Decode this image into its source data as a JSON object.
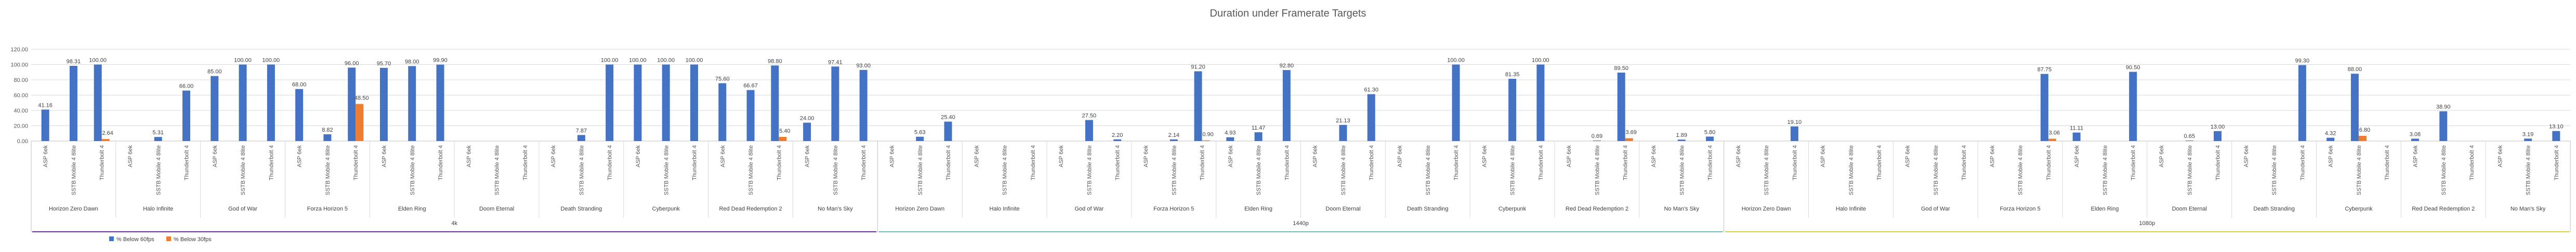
{
  "chart_data": {
    "type": "bar",
    "title": "Duration under Framerate Targets",
    "ylim": [
      0,
      120
    ],
    "yticks": [
      "0.00",
      "20.00",
      "40.00",
      "60.00",
      "80.00",
      "100.00",
      "120.00"
    ],
    "grid": true,
    "legend_position": "bottom-left",
    "series": [
      {
        "name": "% Below 60fps",
        "color": "#4472C4"
      },
      {
        "name": "% Below 30fps",
        "color": "#ED7D31"
      }
    ],
    "devices": [
      "ASP 6ek",
      "SSTB Mobile 4 8lite",
      "Thunderbolt 4"
    ],
    "games": [
      "Horizon Zero Dawn",
      "Halo Infinite",
      "God of War",
      "Forza Horizon 5",
      "Elden Ring",
      "Doom Eternal",
      "Death Stranding",
      "Cyberpunk",
      "Red Dead Redemption 2",
      "No Man's Sky"
    ],
    "resolutions": [
      {
        "label": "4k",
        "line_color": "#7030A0",
        "values": [
          [
            [
              41.16,
              null
            ],
            [
              98.31,
              null
            ],
            [
              100.0,
              2.64
            ]
          ],
          [
            [
              null,
              null
            ],
            [
              5.31,
              null
            ],
            [
              66.0,
              null
            ]
          ],
          [
            [
              85.0,
              null
            ],
            [
              100.0,
              null
            ],
            [
              100.0,
              null
            ]
          ],
          [
            [
              68.0,
              null
            ],
            [
              8.82,
              null
            ],
            [
              96.0,
              48.5
            ]
          ],
          [
            [
              95.7,
              null
            ],
            [
              98.0,
              null
            ],
            [
              99.9,
              null
            ]
          ],
          [
            [
              null,
              null
            ],
            [
              null,
              null
            ],
            [
              null,
              null
            ]
          ],
          [
            [
              null,
              null
            ],
            [
              7.87,
              null
            ],
            [
              100.0,
              null
            ]
          ],
          [
            [
              100.0,
              null
            ],
            [
              100.0,
              null
            ],
            [
              100.0,
              null
            ]
          ],
          [
            [
              75.6,
              null
            ],
            [
              66.67,
              null
            ],
            [
              98.8,
              5.4
            ]
          ],
          [
            [
              24.0,
              null
            ],
            [
              97.41,
              null
            ],
            [
              93.0,
              null
            ]
          ]
        ]
      },
      {
        "label": "1440p",
        "line_color": "#70C0B0",
        "values": [
          [
            [
              null,
              null
            ],
            [
              5.63,
              null
            ],
            [
              25.4,
              null
            ]
          ],
          [
            [
              null,
              null
            ],
            [
              null,
              null
            ],
            [
              null,
              null
            ]
          ],
          [
            [
              null,
              null
            ],
            [
              27.5,
              null
            ],
            [
              2.2,
              null
            ]
          ],
          [
            [
              null,
              null
            ],
            [
              2.14,
              null
            ],
            [
              91.2,
              0.9
            ]
          ],
          [
            [
              4.93,
              null
            ],
            [
              11.47,
              null
            ],
            [
              92.8,
              null
            ]
          ],
          [
            [
              null,
              null
            ],
            [
              21.13,
              null
            ],
            [
              61.3,
              null
            ]
          ],
          [
            [
              null,
              null
            ],
            [
              null,
              null
            ],
            [
              100.0,
              null
            ]
          ],
          [
            [
              null,
              null
            ],
            [
              81.35,
              null
            ],
            [
              100.0,
              null
            ]
          ],
          [
            [
              null,
              null
            ],
            [
              0.69,
              null
            ],
            [
              89.5,
              3.69
            ]
          ],
          [
            [
              null,
              null
            ],
            [
              1.89,
              null
            ],
            [
              5.8,
              null
            ]
          ]
        ]
      },
      {
        "label": "1080p",
        "line_color": "#E0D040",
        "values": [
          [
            [
              null,
              null
            ],
            [
              null,
              null
            ],
            [
              19.1,
              null
            ]
          ],
          [
            [
              null,
              null
            ],
            [
              null,
              null
            ],
            [
              null,
              null
            ]
          ],
          [
            [
              null,
              null
            ],
            [
              null,
              null
            ],
            [
              null,
              null
            ]
          ],
          [
            [
              null,
              null
            ],
            [
              null,
              null
            ],
            [
              87.75,
              3.06
            ]
          ],
          [
            [
              11.11,
              null
            ],
            [
              null,
              null
            ],
            [
              90.5,
              null
            ]
          ],
          [
            [
              null,
              null
            ],
            [
              0.65,
              null
            ],
            [
              13.0,
              null
            ]
          ],
          [
            [
              null,
              null
            ],
            [
              null,
              null
            ],
            [
              99.3,
              null
            ]
          ],
          [
            [
              4.32,
              null
            ],
            [
              88.0,
              6.8
            ],
            [
              null,
              null
            ]
          ],
          [
            [
              3.08,
              null
            ],
            [
              38.9,
              null
            ],
            [
              null,
              null
            ]
          ],
          [
            [
              null,
              null
            ],
            [
              3.19,
              null
            ],
            [
              13.1,
              null
            ]
          ]
        ]
      }
    ]
  }
}
